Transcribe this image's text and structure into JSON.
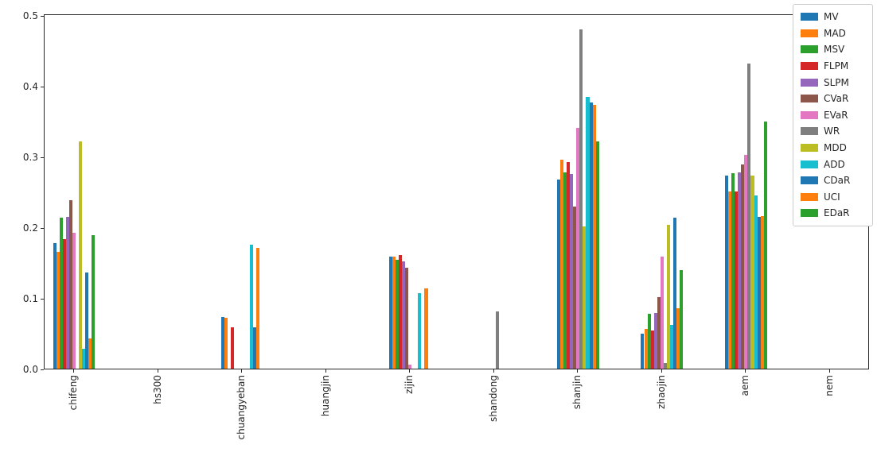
{
  "chart_data": {
    "type": "bar",
    "title": "",
    "xlabel": "",
    "ylabel": "",
    "grid": false,
    "legend_position": "upper right",
    "x_tick_rotation": 90,
    "ylim": [
      0,
      0.5
    ],
    "yticks": [
      "0.0",
      "0.1",
      "0.2",
      "0.3",
      "0.4",
      "0.5"
    ],
    "categories": [
      "chifeng",
      "hs300",
      "chuangyeban",
      "huangjin",
      "zijin",
      "shandong",
      "shanjin",
      "zhaojin",
      "aem",
      "nem"
    ],
    "series": [
      {
        "name": "MV",
        "color": "#1f77b4",
        "values": [
          0.177,
          0,
          0.073,
          0,
          0.159,
          0,
          0.267,
          0.05,
          0.273,
          0
        ]
      },
      {
        "name": "MAD",
        "color": "#ff7f0e",
        "values": [
          0.165,
          0,
          0.072,
          0,
          0.158,
          0,
          0.296,
          0.056,
          0.251,
          0
        ]
      },
      {
        "name": "MSV",
        "color": "#2ca02c",
        "values": [
          0.214,
          0,
          0,
          0,
          0.154,
          0,
          0.278,
          0.078,
          0.276,
          0
        ]
      },
      {
        "name": "FLPM",
        "color": "#d62728",
        "values": [
          0.183,
          0,
          0.058,
          0,
          0.161,
          0,
          0.292,
          0.054,
          0.251,
          0
        ]
      },
      {
        "name": "SLPM",
        "color": "#9467bd",
        "values": [
          0.215,
          0,
          0,
          0,
          0.152,
          0,
          0.275,
          0.079,
          0.277,
          0
        ]
      },
      {
        "name": "CVaR",
        "color": "#8c564b",
        "values": [
          0.238,
          0,
          0,
          0,
          0.143,
          0,
          0.229,
          0.101,
          0.289,
          0
        ]
      },
      {
        "name": "EVaR",
        "color": "#e377c2",
        "values": [
          0.192,
          0,
          0,
          0,
          0.006,
          0,
          0.341,
          0.159,
          0.302,
          0
        ]
      },
      {
        "name": "WR",
        "color": "#7f7f7f",
        "values": [
          0,
          0,
          0,
          0,
          0,
          0.081,
          0.48,
          0.008,
          0.431,
          0
        ]
      },
      {
        "name": "MDD",
        "color": "#bcbd22",
        "values": [
          0.321,
          0,
          0,
          0,
          0,
          0,
          0.201,
          0.203,
          0.273,
          0
        ]
      },
      {
        "name": "ADD",
        "color": "#17becf",
        "values": [
          0.028,
          0,
          0.175,
          0,
          0.107,
          0,
          0.384,
          0.062,
          0.245,
          0
        ]
      },
      {
        "name": "CDaR",
        "color": "#1f77b4",
        "values": [
          0.136,
          0,
          0.059,
          0,
          0,
          0,
          0.376,
          0.213,
          0.215,
          0
        ]
      },
      {
        "name": "UCI",
        "color": "#ff7f0e",
        "values": [
          0.043,
          0,
          0.171,
          0,
          0.114,
          0,
          0.373,
          0.085,
          0.216,
          0
        ]
      },
      {
        "name": "EDaR",
        "color": "#2ca02c",
        "values": [
          0.189,
          0,
          0,
          0,
          0,
          0,
          0.321,
          0.139,
          0.35,
          0
        ]
      }
    ]
  }
}
